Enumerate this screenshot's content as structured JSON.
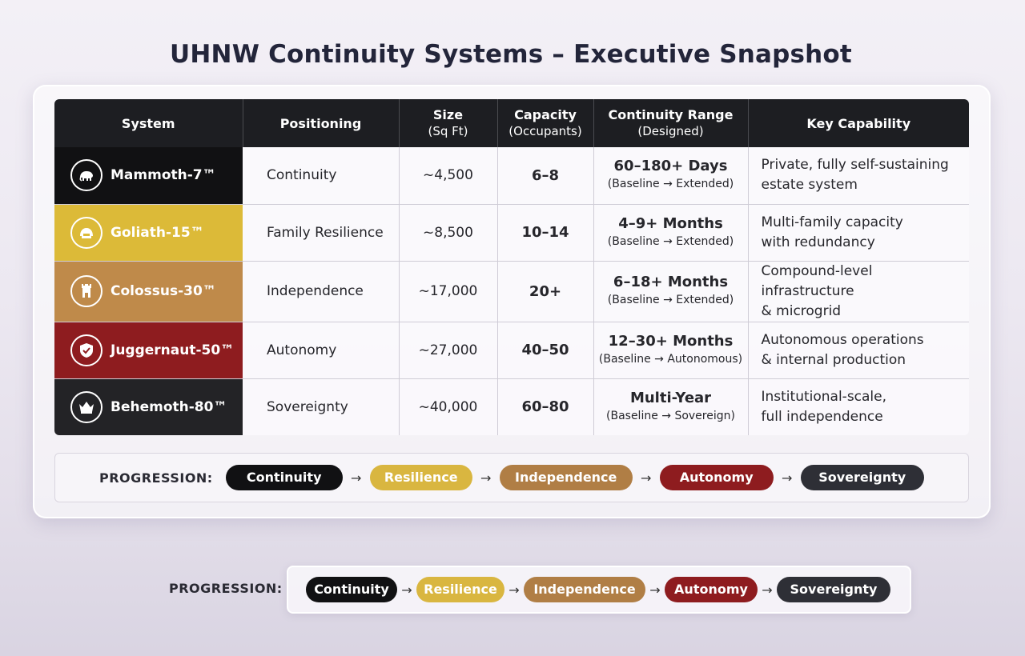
{
  "title": "UHNW Continuity Systems – Executive Snapshot",
  "headers": {
    "system": "System",
    "positioning": "Positioning",
    "size": "Size",
    "size_sub": "(Sq Ft)",
    "capacity": "Capacity",
    "capacity_sub": "(Occupants)",
    "range": "Continuity Range",
    "range_sub": "(Designed)",
    "key": "Key Capability"
  },
  "rows": [
    {
      "system": "Mammoth-7™",
      "icon": "mammoth-icon",
      "color": "#111113",
      "positioning": "Continuity",
      "size": "~4,500",
      "capacity": "6–8",
      "range": "60–180+ Days",
      "range_sub": "(Baseline → Extended)",
      "key_line1": "Private, fully self-sustaining",
      "key_line2": "estate system"
    },
    {
      "system": "Goliath-15™",
      "icon": "helmet-icon",
      "color": "#dcba38",
      "positioning": "Family Resilience",
      "size": "~8,500",
      "capacity": "10–14",
      "range": "4–9+ Months",
      "range_sub": "(Baseline → Extended)",
      "key_line1": "Multi-family capacity",
      "key_line2": "with redundancy"
    },
    {
      "system": "Colossus-30™",
      "icon": "tower-icon",
      "color": "#bf8a4a",
      "positioning": "Independence",
      "size": "~17,000",
      "capacity": "20+",
      "range": "6–18+ Months",
      "range_sub": "(Baseline → Extended)",
      "key_line1": "Compound-level infrastructure",
      "key_line2": "& microgrid"
    },
    {
      "system": "Juggernaut-50™",
      "icon": "shield-icon",
      "color": "#8e1c1f",
      "positioning": "Autonomy",
      "size": "~27,000",
      "capacity": "40–50",
      "range": "12–30+ Months",
      "range_sub": "(Baseline → Autonomous)",
      "key_line1": "Autonomous operations",
      "key_line2": "& internal production"
    },
    {
      "system": "Behemoth-80™",
      "icon": "crown-icon",
      "color": "#232326",
      "positioning": "Sovereignty",
      "size": "~40,000",
      "capacity": "60–80",
      "range": "Multi-Year",
      "range_sub": "(Baseline → Sovereign)",
      "key_line1": "Institutional-scale,",
      "key_line2": "full independence"
    }
  ],
  "progression": {
    "label": "PROGRESSION:",
    "steps": [
      {
        "label": "Continuity",
        "color": "#111113"
      },
      {
        "label": "Resilience",
        "color": "#d9b640"
      },
      {
        "label": "Independence",
        "color": "#b07e45"
      },
      {
        "label": "Autonomy",
        "color": "#8e1c1f"
      },
      {
        "label": "Sovereignty",
        "color": "#2e2f36"
      }
    ]
  }
}
